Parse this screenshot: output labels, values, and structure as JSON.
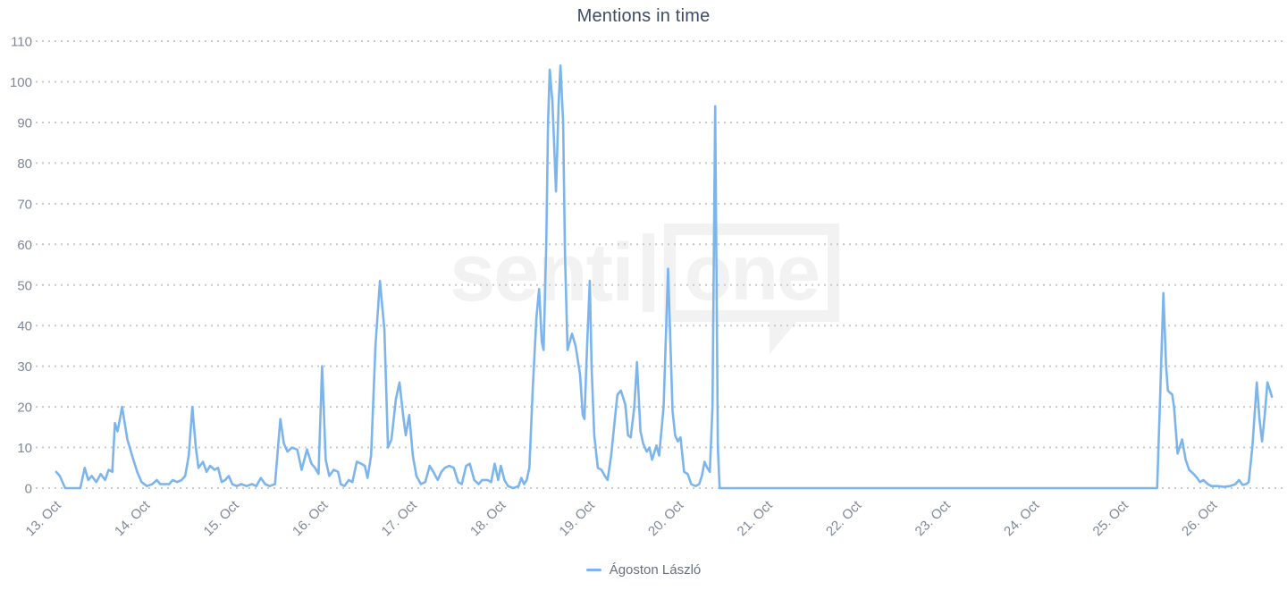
{
  "title": "Mentions in time",
  "legend": {
    "label": "Ágoston László"
  },
  "watermark": {
    "part1": "senti",
    "part2": "one"
  },
  "colors": {
    "line": "#7cb5ec",
    "title": "#3e4c63",
    "axis_label": "#7f8897",
    "grid": "#c9c9c9",
    "legend_text": "#66707f",
    "watermark": "#f2f2f2"
  },
  "chart_data": {
    "type": "line",
    "title": "Mentions in time",
    "xlabel": "",
    "ylabel": "",
    "ylim": [
      0,
      110
    ],
    "y_ticks": [
      0,
      10,
      20,
      30,
      40,
      50,
      60,
      70,
      80,
      90,
      100,
      110
    ],
    "x_tick_labels": [
      "13. Oct",
      "14. Oct",
      "15. Oct",
      "16. Oct",
      "17. Oct",
      "18. Oct",
      "19. Oct",
      "20. Oct",
      "21. Oct",
      "22. Oct",
      "23. Oct",
      "24. Oct",
      "25. Oct",
      "26. Oct"
    ],
    "x_unit": "days since 13. Oct 00:00",
    "grid": "horizontal-dotted",
    "legend_position": "bottom-center",
    "series": [
      {
        "name": "Ágoston László",
        "color": "#7cb5ec",
        "points": [
          [
            0.16,
            4
          ],
          [
            0.2,
            3
          ],
          [
            0.26,
            0
          ],
          [
            0.43,
            0
          ],
          [
            0.48,
            5
          ],
          [
            0.52,
            2
          ],
          [
            0.56,
            3
          ],
          [
            0.61,
            1.5
          ],
          [
            0.66,
            3.5
          ],
          [
            0.71,
            2
          ],
          [
            0.75,
            4.5
          ],
          [
            0.79,
            4
          ],
          [
            0.82,
            16
          ],
          [
            0.85,
            14
          ],
          [
            0.9,
            20
          ],
          [
            0.96,
            12
          ],
          [
            1.02,
            7.5
          ],
          [
            1.07,
            4
          ],
          [
            1.12,
            1.5
          ],
          [
            1.18,
            0.5
          ],
          [
            1.24,
            1
          ],
          [
            1.29,
            2
          ],
          [
            1.33,
            1
          ],
          [
            1.38,
            1
          ],
          [
            1.43,
            1
          ],
          [
            1.47,
            2
          ],
          [
            1.52,
            1.5
          ],
          [
            1.57,
            2
          ],
          [
            1.61,
            3
          ],
          [
            1.65,
            8
          ],
          [
            1.69,
            20
          ],
          [
            1.73,
            10
          ],
          [
            1.76,
            5
          ],
          [
            1.81,
            6.5
          ],
          [
            1.85,
            4
          ],
          [
            1.89,
            5.5
          ],
          [
            1.94,
            4.5
          ],
          [
            1.98,
            5
          ],
          [
            2.02,
            1.5
          ],
          [
            2.06,
            2
          ],
          [
            2.1,
            3
          ],
          [
            2.14,
            1
          ],
          [
            2.19,
            0.5
          ],
          [
            2.24,
            1
          ],
          [
            2.3,
            0.5
          ],
          [
            2.36,
            1
          ],
          [
            2.41,
            0.5
          ],
          [
            2.46,
            2.5
          ],
          [
            2.51,
            1
          ],
          [
            2.56,
            0.5
          ],
          [
            2.62,
            1
          ],
          [
            2.68,
            17
          ],
          [
            2.72,
            11
          ],
          [
            2.76,
            9
          ],
          [
            2.81,
            10
          ],
          [
            2.87,
            9.5
          ],
          [
            2.92,
            4.5
          ],
          [
            2.98,
            9.5
          ],
          [
            3.03,
            6
          ],
          [
            3.07,
            5
          ],
          [
            3.11,
            3.5
          ],
          [
            3.15,
            30
          ],
          [
            3.19,
            7
          ],
          [
            3.23,
            3
          ],
          [
            3.28,
            4.5
          ],
          [
            3.33,
            4
          ],
          [
            3.36,
            1
          ],
          [
            3.4,
            0.5
          ],
          [
            3.45,
            2
          ],
          [
            3.49,
            1.5
          ],
          [
            3.54,
            6.5
          ],
          [
            3.59,
            6
          ],
          [
            3.63,
            5.5
          ],
          [
            3.66,
            2.5
          ],
          [
            3.7,
            8
          ],
          [
            3.75,
            35
          ],
          [
            3.8,
            51
          ],
          [
            3.85,
            39
          ],
          [
            3.89,
            10
          ],
          [
            3.93,
            12
          ],
          [
            3.98,
            22
          ],
          [
            4.02,
            26
          ],
          [
            4.06,
            18
          ],
          [
            4.09,
            13
          ],
          [
            4.13,
            18
          ],
          [
            4.17,
            8
          ],
          [
            4.21,
            3
          ],
          [
            4.26,
            1
          ],
          [
            4.31,
            1.5
          ],
          [
            4.36,
            5.5
          ],
          [
            4.4,
            4
          ],
          [
            4.45,
            2
          ],
          [
            4.49,
            4
          ],
          [
            4.53,
            5
          ],
          [
            4.58,
            5.5
          ],
          [
            4.63,
            5
          ],
          [
            4.68,
            1.5
          ],
          [
            4.72,
            1
          ],
          [
            4.77,
            5.5
          ],
          [
            4.81,
            6
          ],
          [
            4.86,
            2
          ],
          [
            4.91,
            1
          ],
          [
            4.95,
            2
          ],
          [
            5.01,
            2
          ],
          [
            5.05,
            1.5
          ],
          [
            5.09,
            6
          ],
          [
            5.13,
            2
          ],
          [
            5.16,
            5.5
          ],
          [
            5.2,
            2
          ],
          [
            5.24,
            0.5
          ],
          [
            5.3,
            0
          ],
          [
            5.36,
            0.5
          ],
          [
            5.39,
            2.5
          ],
          [
            5.42,
            1
          ],
          [
            5.45,
            2
          ],
          [
            5.48,
            5
          ],
          [
            5.52,
            25
          ],
          [
            5.56,
            42
          ],
          [
            5.59,
            49
          ],
          [
            5.62,
            36
          ],
          [
            5.64,
            34
          ],
          [
            5.67,
            60
          ],
          [
            5.69,
            90
          ],
          [
            5.71,
            103
          ],
          [
            5.74,
            95
          ],
          [
            5.78,
            73
          ],
          [
            5.81,
            95
          ],
          [
            5.83,
            104
          ],
          [
            5.86,
            90
          ],
          [
            5.88,
            58
          ],
          [
            5.91,
            34
          ],
          [
            5.96,
            38
          ],
          [
            6.0,
            35
          ],
          [
            6.05,
            28
          ],
          [
            6.08,
            18
          ],
          [
            6.1,
            17
          ],
          [
            6.13,
            35
          ],
          [
            6.16,
            51
          ],
          [
            6.18,
            30
          ],
          [
            6.21,
            13
          ],
          [
            6.25,
            5
          ],
          [
            6.29,
            4.5
          ],
          [
            6.33,
            3
          ],
          [
            6.36,
            2
          ],
          [
            6.4,
            8
          ],
          [
            6.43,
            14.5
          ],
          [
            6.47,
            23
          ],
          [
            6.51,
            24
          ],
          [
            6.56,
            20.5
          ],
          [
            6.59,
            13
          ],
          [
            6.62,
            12.5
          ],
          [
            6.66,
            20
          ],
          [
            6.69,
            31
          ],
          [
            6.73,
            14
          ],
          [
            6.76,
            11
          ],
          [
            6.8,
            9
          ],
          [
            6.83,
            10
          ],
          [
            6.86,
            7
          ],
          [
            6.91,
            10.5
          ],
          [
            6.94,
            8
          ],
          [
            6.99,
            20
          ],
          [
            7.04,
            54
          ],
          [
            7.09,
            19
          ],
          [
            7.12,
            13
          ],
          [
            7.15,
            11.5
          ],
          [
            7.18,
            12.5
          ],
          [
            7.22,
            4
          ],
          [
            7.26,
            3.5
          ],
          [
            7.3,
            1
          ],
          [
            7.35,
            0.5
          ],
          [
            7.39,
            1
          ],
          [
            7.42,
            3
          ],
          [
            7.45,
            6.5
          ],
          [
            7.48,
            5
          ],
          [
            7.51,
            4
          ],
          [
            7.54,
            20
          ],
          [
            7.57,
            94
          ],
          [
            7.6,
            10
          ],
          [
            7.62,
            0
          ],
          [
            8.5,
            0
          ],
          [
            10,
            0
          ],
          [
            11.5,
            0
          ],
          [
            12.54,
            0
          ],
          [
            12.57,
            20
          ],
          [
            12.61,
            48
          ],
          [
            12.64,
            30
          ],
          [
            12.66,
            24
          ],
          [
            12.71,
            23
          ],
          [
            12.73,
            20
          ],
          [
            12.77,
            8.5
          ],
          [
            12.82,
            12
          ],
          [
            12.86,
            7
          ],
          [
            12.9,
            4.5
          ],
          [
            12.95,
            3.5
          ],
          [
            12.99,
            2.5
          ],
          [
            13.02,
            1.5
          ],
          [
            13.06,
            2
          ],
          [
            13.11,
            1
          ],
          [
            13.15,
            0.5
          ],
          [
            13.22,
            0.5
          ],
          [
            13.29,
            0.3
          ],
          [
            13.36,
            0.5
          ],
          [
            13.42,
            1
          ],
          [
            13.46,
            2
          ],
          [
            13.5,
            0.8
          ],
          [
            13.54,
            1
          ],
          [
            13.57,
            1.5
          ],
          [
            13.61,
            10
          ],
          [
            13.66,
            26
          ],
          [
            13.69,
            17
          ],
          [
            13.72,
            11.5
          ],
          [
            13.75,
            18
          ],
          [
            13.78,
            26
          ],
          [
            13.81,
            24
          ],
          [
            13.83,
            22.5
          ]
        ]
      }
    ]
  }
}
